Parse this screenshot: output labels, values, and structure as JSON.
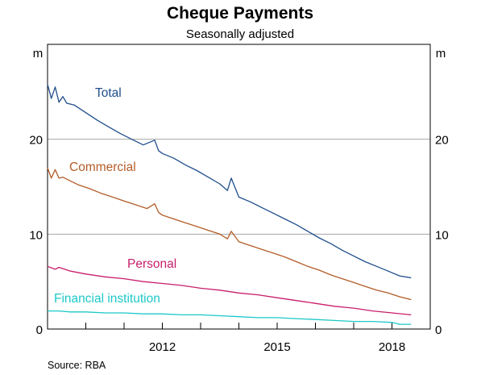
{
  "chart_data": {
    "type": "line",
    "title": "Cheque Payments",
    "subtitle": "Seasonally adjusted",
    "y_unit_left": "m",
    "y_unit_right": "m",
    "ylim": [
      0,
      30
    ],
    "y_ticks": [
      "0",
      "10",
      "20"
    ],
    "y_tick_values": [
      0,
      10,
      20
    ],
    "xlim": [
      2009.0,
      2019.0
    ],
    "x_ticks": [
      "2012",
      "2015",
      "2018"
    ],
    "x_tick_values": [
      2012.0,
      2015.0,
      2018.0
    ],
    "grid": true,
    "source": "Source:    RBA",
    "series": [
      {
        "name": "Total",
        "color": "#1f4e8c",
        "x": [
          2009.0,
          2009.1,
          2009.2,
          2009.3,
          2009.4,
          2009.5,
          2009.7,
          2010.0,
          2010.3,
          2010.6,
          2010.9,
          2011.2,
          2011.5,
          2011.8,
          2011.9,
          2012.0,
          2012.3,
          2012.6,
          2012.9,
          2013.2,
          2013.5,
          2013.7,
          2013.8,
          2014.0,
          2014.3,
          2014.6,
          2014.9,
          2015.2,
          2015.5,
          2015.8,
          2016.1,
          2016.4,
          2016.7,
          2017.0,
          2017.3,
          2017.6,
          2017.9,
          2018.2,
          2018.5
        ],
        "y": [
          25.8,
          24.3,
          25.5,
          23.9,
          24.5,
          23.8,
          23.6,
          22.8,
          22.0,
          21.3,
          20.6,
          20.0,
          19.4,
          19.9,
          18.8,
          18.5,
          18.0,
          17.3,
          16.7,
          16.0,
          15.3,
          14.6,
          15.9,
          13.9,
          13.4,
          12.8,
          12.2,
          11.6,
          11.0,
          10.3,
          9.6,
          9.0,
          8.3,
          7.7,
          7.1,
          6.6,
          6.1,
          5.6,
          5.4
        ]
      },
      {
        "name": "Commercial",
        "color": "#b35c28",
        "x": [
          2009.0,
          2009.1,
          2009.2,
          2009.3,
          2009.4,
          2009.6,
          2009.8,
          2010.1,
          2010.4,
          2010.7,
          2011.0,
          2011.3,
          2011.6,
          2011.8,
          2011.9,
          2012.0,
          2012.3,
          2012.6,
          2012.9,
          2013.2,
          2013.5,
          2013.7,
          2013.8,
          2014.0,
          2014.3,
          2014.6,
          2014.9,
          2015.2,
          2015.5,
          2015.8,
          2016.1,
          2016.4,
          2016.7,
          2017.0,
          2017.3,
          2017.6,
          2017.9,
          2018.2,
          2018.5
        ],
        "y": [
          17.0,
          15.9,
          16.8,
          15.9,
          16.0,
          15.6,
          15.2,
          14.8,
          14.3,
          13.9,
          13.5,
          13.1,
          12.7,
          13.2,
          12.3,
          12.0,
          11.6,
          11.2,
          10.8,
          10.4,
          10.0,
          9.5,
          10.3,
          9.2,
          8.8,
          8.4,
          8.0,
          7.6,
          7.1,
          6.6,
          6.2,
          5.7,
          5.3,
          4.9,
          4.5,
          4.1,
          3.8,
          3.4,
          3.1
        ]
      },
      {
        "name": "Personal",
        "color": "#c81e6b",
        "x": [
          2009.0,
          2009.2,
          2009.3,
          2009.6,
          2010.0,
          2010.5,
          2011.0,
          2011.5,
          2012.0,
          2012.5,
          2013.0,
          2013.5,
          2014.0,
          2014.5,
          2015.0,
          2015.5,
          2016.0,
          2016.5,
          2017.0,
          2017.5,
          2018.0,
          2018.5
        ],
        "y": [
          6.6,
          6.3,
          6.5,
          6.1,
          5.8,
          5.5,
          5.3,
          5.0,
          4.8,
          4.6,
          4.3,
          4.1,
          3.8,
          3.6,
          3.3,
          3.0,
          2.7,
          2.4,
          2.2,
          1.9,
          1.7,
          1.5
        ]
      },
      {
        "name": "Financial institution",
        "color": "#1ec8c8",
        "x": [
          2009.0,
          2009.3,
          2009.6,
          2010.0,
          2010.5,
          2011.0,
          2011.5,
          2012.0,
          2012.5,
          2013.0,
          2013.5,
          2014.0,
          2014.5,
          2015.0,
          2015.5,
          2016.0,
          2016.5,
          2017.0,
          2017.5,
          2018.0,
          2018.2,
          2018.5
        ],
        "y": [
          1.9,
          1.9,
          1.8,
          1.8,
          1.7,
          1.7,
          1.6,
          1.6,
          1.5,
          1.5,
          1.4,
          1.3,
          1.2,
          1.2,
          1.1,
          1.0,
          0.9,
          0.8,
          0.8,
          0.7,
          0.5,
          0.5
        ]
      }
    ]
  }
}
